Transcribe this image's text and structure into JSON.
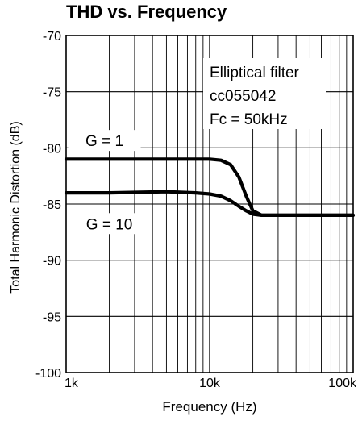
{
  "chart_data": {
    "type": "line",
    "title": "THD vs. Frequency",
    "xlabel": "Frequency (Hz)",
    "ylabel": "Total Harmonic Distortion (dB)",
    "x_scale": "log",
    "xlim": [
      1000,
      100000
    ],
    "ylim": [
      -100,
      -70
    ],
    "x_ticks": [
      1000,
      10000,
      100000
    ],
    "x_tick_labels": [
      "1k",
      "10k",
      "100k"
    ],
    "y_ticks": [
      -100,
      -95,
      -90,
      -85,
      -80,
      -75,
      -70
    ],
    "y_tick_labels": [
      "-100",
      "-95",
      "-90",
      "-85",
      "-80",
      "-75",
      "-70"
    ],
    "grid": true,
    "annotation": {
      "lines": [
        "Elliptical filter",
        "cc055042",
        "Fc = 50kHz"
      ]
    },
    "series": [
      {
        "name": "G = 1",
        "x": [
          1000,
          2000,
          5000,
          10000,
          12000,
          14000,
          16000,
          18000,
          20000,
          23000,
          27000,
          35000,
          50000,
          100000
        ],
        "y": [
          -81.0,
          -81.0,
          -81.0,
          -81.0,
          -81.1,
          -81.5,
          -82.6,
          -84.3,
          -85.6,
          -86.0,
          -86.0,
          -86.0,
          -86.0,
          -86.0
        ],
        "label_x": 1850,
        "label_y": -79.7
      },
      {
        "name": "G = 10",
        "x": [
          1000,
          2000,
          5000,
          8000,
          10000,
          12000,
          14000,
          16000,
          18000,
          20000,
          23000,
          27000,
          35000,
          50000,
          100000
        ],
        "y": [
          -84.0,
          -84.0,
          -83.9,
          -84.0,
          -84.1,
          -84.3,
          -84.7,
          -85.2,
          -85.6,
          -85.9,
          -86.0,
          -86.0,
          -86.0,
          -86.0,
          -86.0
        ],
        "label_x": 2000,
        "label_y": -87.1
      }
    ],
    "line_color": "#000000"
  }
}
